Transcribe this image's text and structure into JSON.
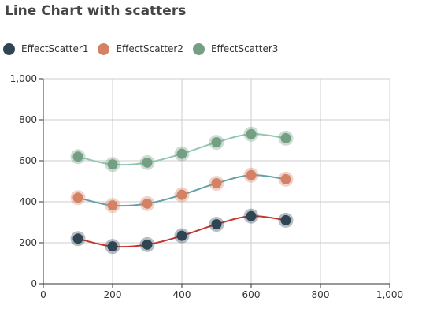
{
  "title": "Line Chart with scatters",
  "chart_data": {
    "type": "line",
    "title": "Line Chart with scatters",
    "x": [
      100,
      200,
      300,
      400,
      500,
      600,
      700
    ],
    "xlim": [
      0,
      1000
    ],
    "ylim": [
      0,
      1000
    ],
    "x_ticks": [
      "0",
      "200",
      "400",
      "600",
      "800",
      "1,000"
    ],
    "y_ticks": [
      "0",
      "200",
      "400",
      "600",
      "800",
      "1,000"
    ],
    "x_tick_values": [
      0,
      200,
      400,
      600,
      800,
      1000
    ],
    "y_tick_values": [
      0,
      200,
      400,
      600,
      800,
      1000
    ],
    "grid": true,
    "legend_position": "top-left",
    "series": [
      {
        "name": "EffectScatter1",
        "values": [
          220,
          182,
          191,
          234,
          290,
          330,
          310
        ],
        "point_color": "#2f4554",
        "line_color": "#c23531"
      },
      {
        "name": "EffectScatter2",
        "values": [
          420,
          382,
          391,
          434,
          490,
          530,
          510
        ],
        "point_color": "#d48265",
        "line_color": "#61a0a8"
      },
      {
        "name": "EffectScatter3",
        "values": [
          620,
          582,
          591,
          634,
          690,
          730,
          710
        ],
        "point_color": "#749f83",
        "line_color": "#91c7ae"
      }
    ]
  }
}
